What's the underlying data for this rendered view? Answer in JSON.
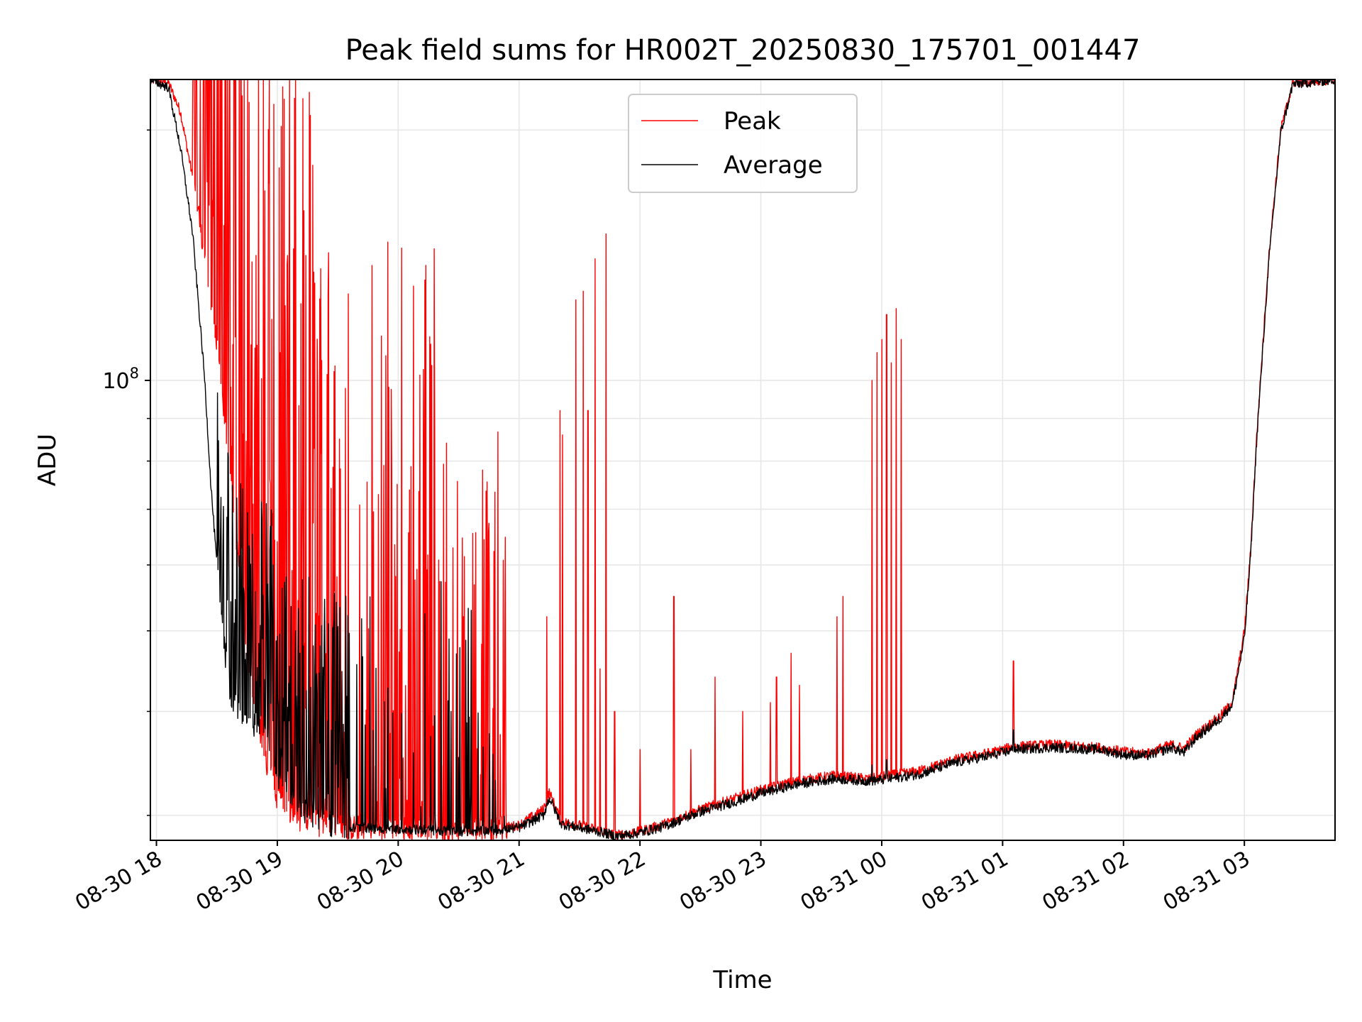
{
  "chart_data": {
    "type": "line",
    "title": "Peak field sums for HR002T_20250830_175701_001447",
    "xlabel": "Time",
    "ylabel": "ADU",
    "yscale": "log",
    "grid": true,
    "legend_placement": "upper-center",
    "x_ticks": [
      "08-30 18",
      "08-30 19",
      "08-30 20",
      "08-30 21",
      "08-30 22",
      "08-30 23",
      "08-31 00",
      "08-31 01",
      "08-31 02",
      "08-31 03"
    ],
    "y_tick_labels": [
      {
        "base": "10",
        "exp": "8",
        "value": 100000000
      }
    ],
    "xlim_hours": [
      17.95,
      27.75
    ],
    "ylim": [
      28000000,
      230000000
    ],
    "series": [
      {
        "name": "Peak",
        "color": "#ff0000",
        "baseline": [
          [
            17.95,
            230000000
          ],
          [
            18.1,
            228000000
          ],
          [
            18.2,
            210000000
          ],
          [
            18.3,
            175000000
          ],
          [
            18.4,
            140000000
          ],
          [
            18.5,
            110000000
          ],
          [
            18.6,
            80000000
          ],
          [
            18.7,
            55000000
          ],
          [
            18.8,
            42000000
          ],
          [
            18.9,
            35000000
          ],
          [
            19.0,
            31500000
          ],
          [
            19.2,
            29500000
          ],
          [
            19.5,
            29000000
          ],
          [
            20.0,
            29000000
          ],
          [
            20.5,
            28800000
          ],
          [
            20.8,
            28900000
          ],
          [
            21.0,
            29200000
          ],
          [
            21.2,
            30500000
          ],
          [
            21.25,
            32000000
          ],
          [
            21.35,
            29500000
          ],
          [
            21.5,
            29200000
          ],
          [
            21.7,
            28700000
          ],
          [
            21.8,
            28400000
          ],
          [
            22.0,
            28700000
          ],
          [
            22.2,
            29300000
          ],
          [
            22.5,
            30500000
          ],
          [
            22.8,
            31500000
          ],
          [
            23.0,
            32200000
          ],
          [
            23.3,
            33000000
          ],
          [
            23.6,
            33500000
          ],
          [
            23.9,
            33200000
          ],
          [
            24.0,
            33400000
          ],
          [
            24.3,
            33900000
          ],
          [
            24.6,
            35000000
          ],
          [
            24.9,
            35700000
          ],
          [
            25.1,
            36300000
          ],
          [
            25.4,
            36500000
          ],
          [
            25.8,
            36200000
          ],
          [
            26.0,
            35800000
          ],
          [
            26.2,
            35600000
          ],
          [
            26.3,
            36100000
          ],
          [
            26.4,
            36500000
          ],
          [
            26.5,
            36100000
          ],
          [
            26.6,
            37500000
          ],
          [
            26.8,
            39500000
          ],
          [
            26.9,
            41000000
          ],
          [
            27.0,
            50000000
          ],
          [
            27.05,
            62000000
          ],
          [
            27.1,
            85000000
          ],
          [
            27.2,
            140000000
          ],
          [
            27.3,
            200000000
          ],
          [
            27.4,
            228000000
          ],
          [
            27.75,
            230000000
          ]
        ],
        "spikes": [
          [
            21.23,
            52000000
          ],
          [
            21.34,
            92000000
          ],
          [
            21.36,
            86000000
          ],
          [
            21.47,
            125000000
          ],
          [
            21.53,
            128000000
          ],
          [
            21.57,
            92000000
          ],
          [
            21.63,
            140000000
          ],
          [
            21.67,
            45000000
          ],
          [
            21.72,
            150000000
          ],
          [
            21.79,
            40000000
          ],
          [
            22.0,
            36000000
          ],
          [
            22.28,
            55000000
          ],
          [
            22.42,
            36000000
          ],
          [
            22.62,
            44000000
          ],
          [
            22.85,
            40000000
          ],
          [
            23.08,
            41000000
          ],
          [
            23.13,
            44000000
          ],
          [
            23.25,
            47000000
          ],
          [
            23.32,
            43000000
          ],
          [
            23.63,
            52000000
          ],
          [
            23.68,
            55000000
          ],
          [
            23.92,
            100000000
          ],
          [
            23.96,
            108000000
          ],
          [
            24.0,
            112000000
          ],
          [
            24.04,
            120000000
          ],
          [
            24.08,
            105000000
          ],
          [
            24.12,
            122000000
          ],
          [
            24.16,
            112000000
          ],
          [
            25.09,
            46000000
          ]
        ]
      },
      {
        "name": "Average",
        "color": "#000000",
        "baseline": [
          [
            17.95,
            230000000
          ],
          [
            18.1,
            225000000
          ],
          [
            18.2,
            190000000
          ],
          [
            18.3,
            150000000
          ],
          [
            18.4,
            100000000
          ],
          [
            18.45,
            75000000
          ],
          [
            18.5,
            60000000
          ],
          [
            18.55,
            50000000
          ],
          [
            18.6,
            42000000
          ],
          [
            18.7,
            40000000
          ],
          [
            18.8,
            38500000
          ],
          [
            18.9,
            39000000
          ],
          [
            19.0,
            33500000
          ],
          [
            19.2,
            30500000
          ],
          [
            19.5,
            29000000
          ],
          [
            20.0,
            28900000
          ],
          [
            20.5,
            28700000
          ],
          [
            20.8,
            28800000
          ],
          [
            21.0,
            29000000
          ],
          [
            21.2,
            30000000
          ],
          [
            21.25,
            31500000
          ],
          [
            21.35,
            29300000
          ],
          [
            21.5,
            29000000
          ],
          [
            21.7,
            28600000
          ],
          [
            21.8,
            28300000
          ],
          [
            22.0,
            28600000
          ],
          [
            22.2,
            29100000
          ],
          [
            22.5,
            30300000
          ],
          [
            22.8,
            31200000
          ],
          [
            23.0,
            31900000
          ],
          [
            23.3,
            32700000
          ],
          [
            23.6,
            33200000
          ],
          [
            23.9,
            33000000
          ],
          [
            24.0,
            33100000
          ],
          [
            24.3,
            33600000
          ],
          [
            24.6,
            34700000
          ],
          [
            24.9,
            35400000
          ],
          [
            25.1,
            36000000
          ],
          [
            25.4,
            36200000
          ],
          [
            25.8,
            36000000
          ],
          [
            26.0,
            35500000
          ],
          [
            26.2,
            35400000
          ],
          [
            26.3,
            35800000
          ],
          [
            26.4,
            36200000
          ],
          [
            26.5,
            35700000
          ],
          [
            26.6,
            37200000
          ],
          [
            26.8,
            39200000
          ],
          [
            26.9,
            40800000
          ],
          [
            27.0,
            49000000
          ],
          [
            27.05,
            61000000
          ],
          [
            27.1,
            84000000
          ],
          [
            27.2,
            138000000
          ],
          [
            27.3,
            198000000
          ],
          [
            27.4,
            227000000
          ],
          [
            27.75,
            230000000
          ]
        ],
        "spikes": [
          [
            25.09,
            38000000
          ],
          [
            23.92,
            34500000
          ],
          [
            24.04,
            35000000
          ]
        ]
      }
    ]
  }
}
